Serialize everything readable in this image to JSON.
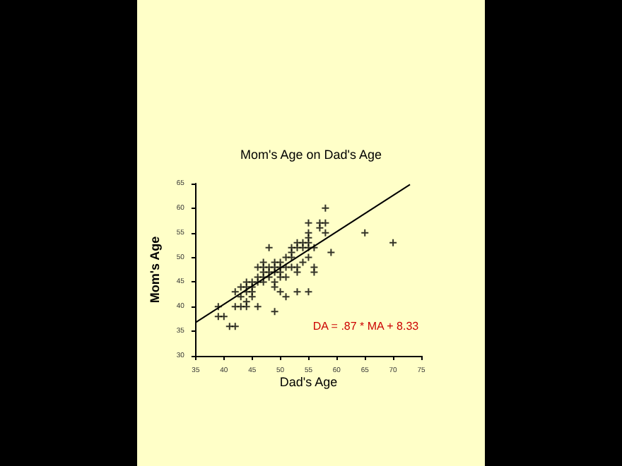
{
  "chart_data": {
    "type": "scatter",
    "title": "Mom's Age on Dad's Age",
    "xlabel": "Dad's Age",
    "ylabel": "Mom's Age",
    "marker": "cross",
    "grid": false,
    "xlim": [
      35,
      75
    ],
    "xticks": [
      35,
      40,
      45,
      50,
      55,
      60,
      65,
      70,
      75
    ],
    "ylim": [
      30,
      65
    ],
    "yticks": [
      30,
      35,
      40,
      45,
      50,
      55,
      60,
      65
    ],
    "annotations": [
      "DA = .87 * MA + 8.33"
    ],
    "series": [
      {
        "color": "#000000",
        "x": [
          39,
          39,
          40,
          41,
          42,
          42,
          42,
          43,
          43,
          43,
          44,
          44,
          44,
          44,
          44,
          45,
          45,
          45,
          45,
          46,
          46,
          46,
          46,
          47,
          47,
          47,
          47,
          47,
          48,
          48,
          48,
          48,
          49,
          49,
          49,
          49,
          49,
          49,
          50,
          50,
          50,
          50,
          50,
          51,
          51,
          51,
          51,
          52,
          52,
          52,
          52,
          53,
          53,
          53,
          53,
          53,
          54,
          54,
          54,
          55,
          55,
          55,
          55,
          55,
          55,
          55,
          56,
          56,
          56,
          57,
          57,
          58,
          58,
          58,
          59,
          65,
          70
        ],
        "values": [
          40,
          38,
          38,
          36,
          36,
          43,
          40,
          40,
          42,
          44,
          40,
          41,
          43,
          45,
          44,
          42,
          43,
          44,
          45,
          40,
          45,
          46,
          48,
          45,
          46,
          48,
          49,
          47,
          52,
          46,
          47,
          48,
          39,
          44,
          45,
          47,
          48,
          49,
          43,
          46,
          47,
          48,
          49,
          42,
          46,
          48,
          50,
          48,
          50,
          51,
          52,
          43,
          47,
          48,
          52,
          53,
          49,
          52,
          53,
          43,
          50,
          52,
          53,
          54,
          55,
          57,
          47,
          48,
          52,
          56,
          57,
          55,
          57,
          60,
          51,
          55,
          53
        ]
      },
      {
        "type": "line",
        "marker": "none",
        "color": "#000000",
        "x": [
          35,
          73
        ],
        "values": [
          36.8,
          64.8
        ]
      }
    ]
  }
}
